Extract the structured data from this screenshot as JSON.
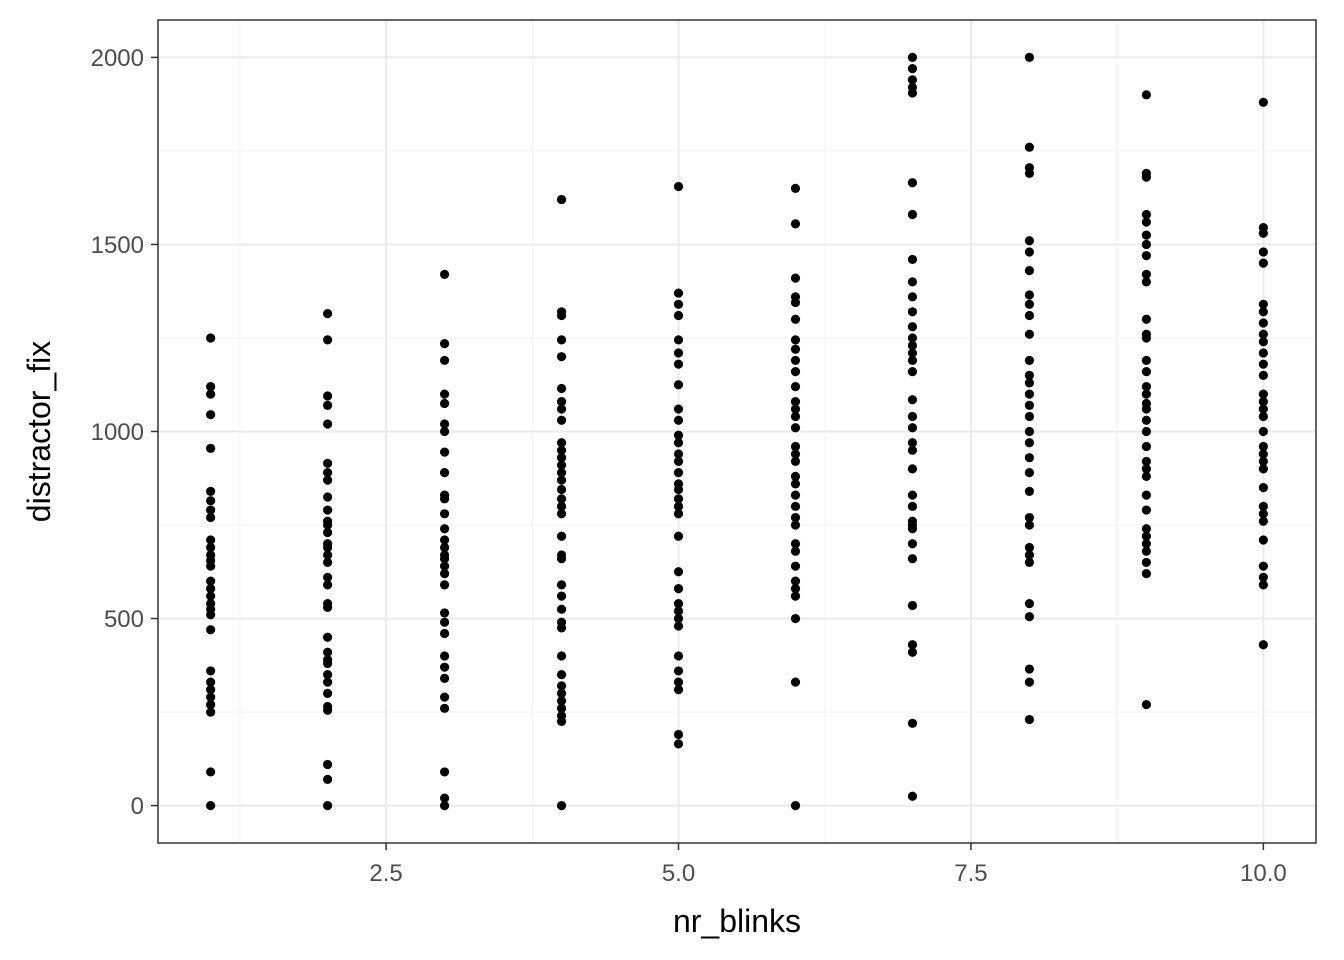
{
  "chart_data": {
    "type": "scatter",
    "title": "",
    "xlabel": "nr_blinks",
    "ylabel": "distractor_fix",
    "xlim": [
      0.55,
      10.45
    ],
    "ylim": [
      -100,
      2100
    ],
    "x_ticks": [
      2.5,
      5.0,
      7.5,
      10.0
    ],
    "x_tick_labels": [
      "2.5",
      "5.0",
      "7.5",
      "10.0"
    ],
    "y_ticks": [
      0,
      500,
      1000,
      1500,
      2000
    ],
    "y_tick_labels": [
      "0",
      "500",
      "1000",
      "1500",
      "2000"
    ],
    "grid": true,
    "point_color": "#000000",
    "series": [
      {
        "points": [
          [
            1,
            1250
          ],
          [
            1,
            1120
          ],
          [
            1,
            1100
          ],
          [
            1,
            1045
          ],
          [
            1,
            955
          ],
          [
            1,
            840
          ],
          [
            1,
            815
          ],
          [
            1,
            790
          ],
          [
            1,
            770
          ],
          [
            1,
            710
          ],
          [
            1,
            690
          ],
          [
            1,
            670
          ],
          [
            1,
            655
          ],
          [
            1,
            640
          ],
          [
            1,
            600
          ],
          [
            1,
            580
          ],
          [
            1,
            560
          ],
          [
            1,
            540
          ],
          [
            1,
            525
          ],
          [
            1,
            510
          ],
          [
            1,
            470
          ],
          [
            1,
            360
          ],
          [
            1,
            330
          ],
          [
            1,
            310
          ],
          [
            1,
            290
          ],
          [
            1,
            270
          ],
          [
            1,
            250
          ],
          [
            1,
            90
          ],
          [
            1,
            0
          ],
          [
            2,
            1315
          ],
          [
            2,
            1245
          ],
          [
            2,
            1095
          ],
          [
            2,
            1070
          ],
          [
            2,
            1020
          ],
          [
            2,
            915
          ],
          [
            2,
            890
          ],
          [
            2,
            870
          ],
          [
            2,
            825
          ],
          [
            2,
            790
          ],
          [
            2,
            760
          ],
          [
            2,
            750
          ],
          [
            2,
            730
          ],
          [
            2,
            700
          ],
          [
            2,
            690
          ],
          [
            2,
            670
          ],
          [
            2,
            650
          ],
          [
            2,
            610
          ],
          [
            2,
            590
          ],
          [
            2,
            540
          ],
          [
            2,
            530
          ],
          [
            2,
            450
          ],
          [
            2,
            410
          ],
          [
            2,
            390
          ],
          [
            2,
            380
          ],
          [
            2,
            350
          ],
          [
            2,
            330
          ],
          [
            2,
            300
          ],
          [
            2,
            265
          ],
          [
            2,
            255
          ],
          [
            2,
            110
          ],
          [
            2,
            70
          ],
          [
            2,
            0
          ],
          [
            3,
            1420
          ],
          [
            3,
            1235
          ],
          [
            3,
            1190
          ],
          [
            3,
            1100
          ],
          [
            3,
            1075
          ],
          [
            3,
            1020
          ],
          [
            3,
            1000
          ],
          [
            3,
            945
          ],
          [
            3,
            890
          ],
          [
            3,
            830
          ],
          [
            3,
            820
          ],
          [
            3,
            780
          ],
          [
            3,
            740
          ],
          [
            3,
            710
          ],
          [
            3,
            690
          ],
          [
            3,
            670
          ],
          [
            3,
            660
          ],
          [
            3,
            640
          ],
          [
            3,
            620
          ],
          [
            3,
            590
          ],
          [
            3,
            515
          ],
          [
            3,
            490
          ],
          [
            3,
            460
          ],
          [
            3,
            400
          ],
          [
            3,
            370
          ],
          [
            3,
            340
          ],
          [
            3,
            290
          ],
          [
            3,
            260
          ],
          [
            3,
            90
          ],
          [
            3,
            20
          ],
          [
            3,
            0
          ],
          [
            4,
            1620
          ],
          [
            4,
            1320
          ],
          [
            4,
            1310
          ],
          [
            4,
            1245
          ],
          [
            4,
            1200
          ],
          [
            4,
            1115
          ],
          [
            4,
            1080
          ],
          [
            4,
            1060
          ],
          [
            4,
            1030
          ],
          [
            4,
            970
          ],
          [
            4,
            950
          ],
          [
            4,
            930
          ],
          [
            4,
            910
          ],
          [
            4,
            890
          ],
          [
            4,
            870
          ],
          [
            4,
            845
          ],
          [
            4,
            820
          ],
          [
            4,
            800
          ],
          [
            4,
            780
          ],
          [
            4,
            720
          ],
          [
            4,
            670
          ],
          [
            4,
            660
          ],
          [
            4,
            590
          ],
          [
            4,
            560
          ],
          [
            4,
            525
          ],
          [
            4,
            490
          ],
          [
            4,
            475
          ],
          [
            4,
            400
          ],
          [
            4,
            350
          ],
          [
            4,
            320
          ],
          [
            4,
            300
          ],
          [
            4,
            280
          ],
          [
            4,
            260
          ],
          [
            4,
            240
          ],
          [
            4,
            225
          ],
          [
            4,
            0
          ],
          [
            5,
            1655
          ],
          [
            5,
            1370
          ],
          [
            5,
            1340
          ],
          [
            5,
            1310
          ],
          [
            5,
            1245
          ],
          [
            5,
            1210
          ],
          [
            5,
            1180
          ],
          [
            5,
            1125
          ],
          [
            5,
            1060
          ],
          [
            5,
            1030
          ],
          [
            5,
            990
          ],
          [
            5,
            970
          ],
          [
            5,
            940
          ],
          [
            5,
            920
          ],
          [
            5,
            890
          ],
          [
            5,
            860
          ],
          [
            5,
            845
          ],
          [
            5,
            820
          ],
          [
            5,
            800
          ],
          [
            5,
            780
          ],
          [
            5,
            720
          ],
          [
            5,
            625
          ],
          [
            5,
            580
          ],
          [
            5,
            540
          ],
          [
            5,
            520
          ],
          [
            5,
            500
          ],
          [
            5,
            480
          ],
          [
            5,
            400
          ],
          [
            5,
            360
          ],
          [
            5,
            330
          ],
          [
            5,
            310
          ],
          [
            5,
            190
          ],
          [
            5,
            165
          ],
          [
            6,
            1650
          ],
          [
            6,
            1555
          ],
          [
            6,
            1410
          ],
          [
            6,
            1360
          ],
          [
            6,
            1345
          ],
          [
            6,
            1300
          ],
          [
            6,
            1245
          ],
          [
            6,
            1220
          ],
          [
            6,
            1190
          ],
          [
            6,
            1160
          ],
          [
            6,
            1120
          ],
          [
            6,
            1080
          ],
          [
            6,
            1060
          ],
          [
            6,
            1040
          ],
          [
            6,
            1010
          ],
          [
            6,
            960
          ],
          [
            6,
            940
          ],
          [
            6,
            920
          ],
          [
            6,
            880
          ],
          [
            6,
            860
          ],
          [
            6,
            830
          ],
          [
            6,
            800
          ],
          [
            6,
            770
          ],
          [
            6,
            750
          ],
          [
            6,
            700
          ],
          [
            6,
            680
          ],
          [
            6,
            640
          ],
          [
            6,
            600
          ],
          [
            6,
            580
          ],
          [
            6,
            560
          ],
          [
            6,
            500
          ],
          [
            6,
            330
          ],
          [
            6,
            0
          ],
          [
            7,
            2000
          ],
          [
            7,
            1970
          ],
          [
            7,
            1940
          ],
          [
            7,
            1920
          ],
          [
            7,
            1905
          ],
          [
            7,
            1665
          ],
          [
            7,
            1580
          ],
          [
            7,
            1460
          ],
          [
            7,
            1400
          ],
          [
            7,
            1360
          ],
          [
            7,
            1320
          ],
          [
            7,
            1280
          ],
          [
            7,
            1250
          ],
          [
            7,
            1230
          ],
          [
            7,
            1210
          ],
          [
            7,
            1190
          ],
          [
            7,
            1160
          ],
          [
            7,
            1085
          ],
          [
            7,
            1040
          ],
          [
            7,
            1010
          ],
          [
            7,
            970
          ],
          [
            7,
            950
          ],
          [
            7,
            900
          ],
          [
            7,
            830
          ],
          [
            7,
            800
          ],
          [
            7,
            760
          ],
          [
            7,
            750
          ],
          [
            7,
            740
          ],
          [
            7,
            700
          ],
          [
            7,
            660
          ],
          [
            7,
            535
          ],
          [
            7,
            430
          ],
          [
            7,
            410
          ],
          [
            7,
            220
          ],
          [
            7,
            25
          ],
          [
            8,
            2000
          ],
          [
            8,
            1760
          ],
          [
            8,
            1705
          ],
          [
            8,
            1690
          ],
          [
            8,
            1510
          ],
          [
            8,
            1480
          ],
          [
            8,
            1430
          ],
          [
            8,
            1365
          ],
          [
            8,
            1340
          ],
          [
            8,
            1310
          ],
          [
            8,
            1260
          ],
          [
            8,
            1190
          ],
          [
            8,
            1150
          ],
          [
            8,
            1130
          ],
          [
            8,
            1100
          ],
          [
            8,
            1070
          ],
          [
            8,
            1040
          ],
          [
            8,
            1000
          ],
          [
            8,
            970
          ],
          [
            8,
            930
          ],
          [
            8,
            890
          ],
          [
            8,
            840
          ],
          [
            8,
            770
          ],
          [
            8,
            750
          ],
          [
            8,
            690
          ],
          [
            8,
            670
          ],
          [
            8,
            650
          ],
          [
            8,
            540
          ],
          [
            8,
            505
          ],
          [
            8,
            365
          ],
          [
            8,
            330
          ],
          [
            8,
            230
          ],
          [
            9,
            1900
          ],
          [
            9,
            1690
          ],
          [
            9,
            1680
          ],
          [
            9,
            1580
          ],
          [
            9,
            1560
          ],
          [
            9,
            1525
          ],
          [
            9,
            1500
          ],
          [
            9,
            1470
          ],
          [
            9,
            1420
          ],
          [
            9,
            1400
          ],
          [
            9,
            1300
          ],
          [
            9,
            1260
          ],
          [
            9,
            1250
          ],
          [
            9,
            1190
          ],
          [
            9,
            1160
          ],
          [
            9,
            1120
          ],
          [
            9,
            1100
          ],
          [
            9,
            1075
          ],
          [
            9,
            1060
          ],
          [
            9,
            1030
          ],
          [
            9,
            1000
          ],
          [
            9,
            960
          ],
          [
            9,
            920
          ],
          [
            9,
            900
          ],
          [
            9,
            880
          ],
          [
            9,
            830
          ],
          [
            9,
            790
          ],
          [
            9,
            740
          ],
          [
            9,
            720
          ],
          [
            9,
            700
          ],
          [
            9,
            680
          ],
          [
            9,
            650
          ],
          [
            9,
            620
          ],
          [
            9,
            270
          ],
          [
            10,
            1880
          ],
          [
            10,
            1545
          ],
          [
            10,
            1530
          ],
          [
            10,
            1480
          ],
          [
            10,
            1450
          ],
          [
            10,
            1340
          ],
          [
            10,
            1320
          ],
          [
            10,
            1290
          ],
          [
            10,
            1260
          ],
          [
            10,
            1240
          ],
          [
            10,
            1210
          ],
          [
            10,
            1180
          ],
          [
            10,
            1150
          ],
          [
            10,
            1100
          ],
          [
            10,
            1080
          ],
          [
            10,
            1060
          ],
          [
            10,
            1040
          ],
          [
            10,
            1000
          ],
          [
            10,
            960
          ],
          [
            10,
            940
          ],
          [
            10,
            920
          ],
          [
            10,
            900
          ],
          [
            10,
            850
          ],
          [
            10,
            800
          ],
          [
            10,
            780
          ],
          [
            10,
            760
          ],
          [
            10,
            710
          ],
          [
            10,
            640
          ],
          [
            10,
            610
          ],
          [
            10,
            590
          ],
          [
            10,
            430
          ]
        ]
      }
    ]
  }
}
